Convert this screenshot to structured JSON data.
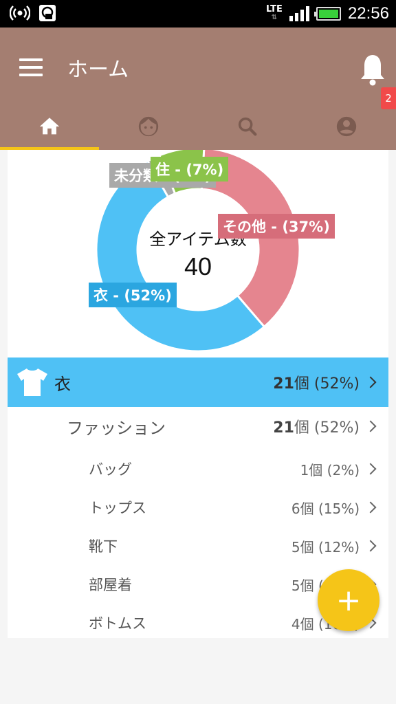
{
  "status_bar": {
    "network": "LTE",
    "time": "22:56"
  },
  "app_bar": {
    "title": "ホーム",
    "notification_count": "2"
  },
  "tabs": [
    {
      "name": "home",
      "icon": "home-icon",
      "active": true
    },
    {
      "name": "face",
      "icon": "face-icon",
      "active": false
    },
    {
      "name": "search",
      "icon": "search-icon",
      "active": false
    },
    {
      "name": "account",
      "icon": "account-circle-icon",
      "active": false
    }
  ],
  "chart_data": {
    "type": "pie",
    "center_label": "全アイテム数",
    "center_value": "40",
    "slices": [
      {
        "label": "その他 - (37%)",
        "value": 37,
        "color": "#e5858f"
      },
      {
        "label": "衣 - (52%)",
        "value": 52,
        "color": "#4fc1f5"
      },
      {
        "label": "未分類 - (2%)",
        "value": 2,
        "color": "#a9a9a9"
      },
      {
        "label": "住 - (7%)",
        "value": 7,
        "color": "#8bc34a"
      }
    ]
  },
  "list": {
    "category": {
      "name": "衣",
      "count": "21",
      "unit": "個",
      "percent": "(52%)"
    },
    "subcategory": {
      "name": "ファッション",
      "count": "21",
      "unit": "個",
      "percent": "(52%)"
    },
    "items": [
      {
        "name": "バッグ",
        "count": "1個 (2%)"
      },
      {
        "name": "トップス",
        "count": "6個 (15%)"
      },
      {
        "name": "靴下",
        "count": "5個 (12%)"
      },
      {
        "name": "部屋着",
        "count": "5個 (12%)"
      },
      {
        "name": "ボトムス",
        "count": "4個 (10%)"
      }
    ]
  },
  "fab": {
    "label": "+"
  },
  "colors": {
    "app_bar": "#a47e71",
    "accent": "#f5c518",
    "category_row": "#4fc1f5",
    "badge": "#f14a4a"
  }
}
